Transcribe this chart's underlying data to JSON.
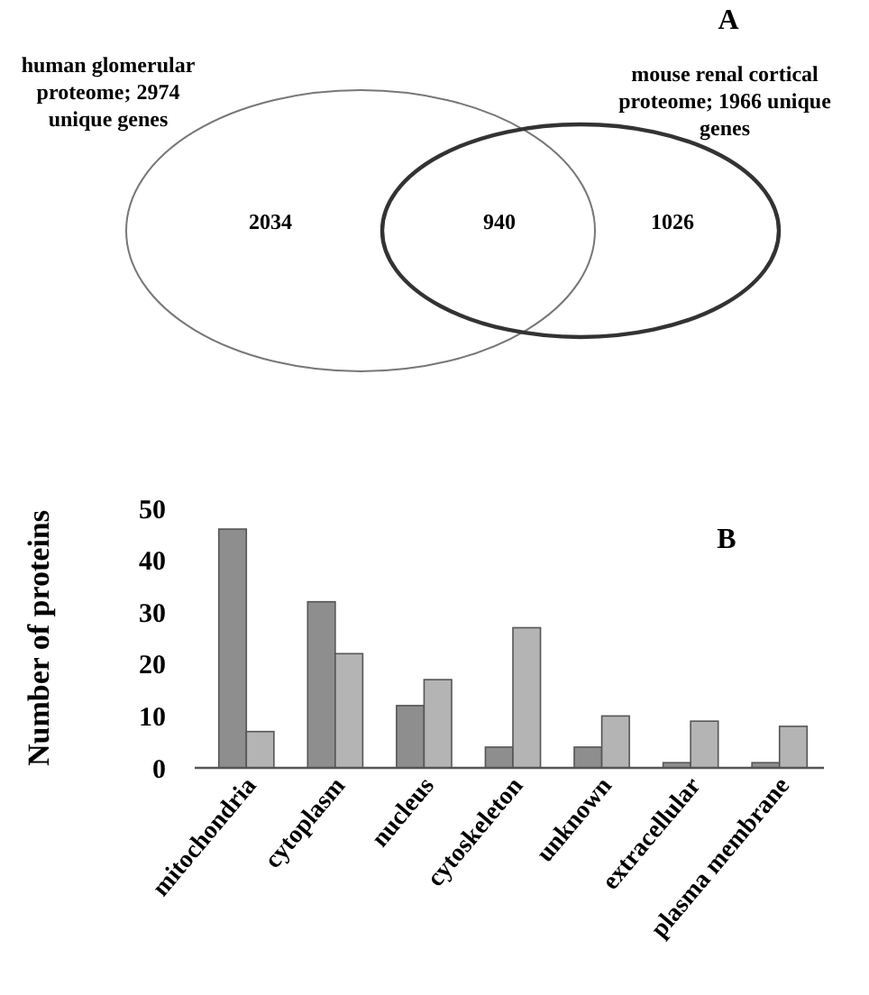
{
  "chart_data": [
    {
      "type": "other",
      "title": "A",
      "annotations": [
        "human glomerular proteome; 2974 unique genes",
        "mouse renal cortical proteome; 1966 unique genes"
      ],
      "categories": [
        null,
        null,
        null
      ],
      "values": [
        2034,
        940,
        1026
      ],
      "data_labels": true
    },
    {
      "type": "bar",
      "title": "B",
      "ylabel": "Number of proteins",
      "categories": [
        "mitochondria",
        "cytoplasm",
        "nucleus",
        "cytoskeleton",
        "unknown",
        "extracellular",
        "plasma membrane"
      ],
      "series": [
        {
          "color": "#8e8e8e",
          "values": [
            46,
            32,
            12,
            4,
            4,
            1,
            1
          ]
        },
        {
          "color": "#b4b4b4",
          "values": [
            7,
            22,
            17,
            27,
            10,
            9,
            8
          ]
        }
      ],
      "ylim": [
        0,
        50
      ],
      "yticks": [
        0,
        10,
        20,
        30,
        40,
        50
      ]
    }
  ]
}
